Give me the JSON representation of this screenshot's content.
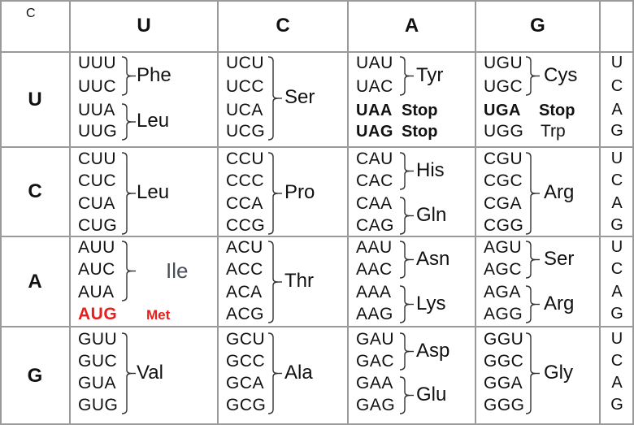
{
  "corner_label": "C",
  "column_headers": [
    "U",
    "C",
    "A",
    "G"
  ],
  "row_headers": [
    "U",
    "C",
    "A",
    "G"
  ],
  "third_position": [
    "U",
    "C",
    "A",
    "G"
  ],
  "blocks": [
    [
      {
        "codons": [
          "UUU",
          "UUC",
          "UUA",
          "UUG"
        ],
        "groups": [
          {
            "label": "Phe",
            "from": 0,
            "to": 1
          },
          {
            "label": "Leu",
            "from": 2,
            "to": 3
          }
        ]
      },
      {
        "codons": [
          "UCU",
          "UCC",
          "UCA",
          "UCG"
        ],
        "groups": [
          {
            "label": "Ser",
            "from": 0,
            "to": 3
          }
        ]
      },
      {
        "codons": [
          "UAU",
          "UAC",
          "UAA",
          "UAG"
        ],
        "groups": [
          {
            "label": "Tyr",
            "from": 0,
            "to": 1
          }
        ],
        "stops": [
          {
            "index": 2,
            "label": "Stop"
          },
          {
            "index": 3,
            "label": "Stop"
          }
        ]
      },
      {
        "codons": [
          "UGU",
          "UGC",
          "UGA",
          "UGG"
        ],
        "groups": [
          {
            "label": "Cys",
            "from": 0,
            "to": 1
          }
        ],
        "stops": [
          {
            "index": 2,
            "label": "Stop"
          }
        ],
        "singles": [
          {
            "index": 3,
            "label": "Trp"
          }
        ]
      }
    ],
    [
      {
        "codons": [
          "CUU",
          "CUC",
          "CUA",
          "CUG"
        ],
        "groups": [
          {
            "label": "Leu",
            "from": 0,
            "to": 3
          }
        ]
      },
      {
        "codons": [
          "CCU",
          "CCC",
          "CCA",
          "CCG"
        ],
        "groups": [
          {
            "label": "Pro",
            "from": 0,
            "to": 3
          }
        ]
      },
      {
        "codons": [
          "CAU",
          "CAC",
          "CAA",
          "CAG"
        ],
        "groups": [
          {
            "label": "His",
            "from": 0,
            "to": 1
          },
          {
            "label": "Gln",
            "from": 2,
            "to": 3
          }
        ]
      },
      {
        "codons": [
          "CGU",
          "CGC",
          "CGA",
          "CGG"
        ],
        "groups": [
          {
            "label": "Arg",
            "from": 0,
            "to": 3
          }
        ]
      }
    ],
    [
      {
        "codons": [
          "AUU",
          "AUC",
          "AUA",
          "AUG"
        ],
        "groups": [
          {
            "label": "Ile",
            "from": 0,
            "to": 2
          }
        ],
        "start": {
          "index": 3,
          "label": "Met"
        }
      },
      {
        "codons": [
          "ACU",
          "ACC",
          "ACA",
          "ACG"
        ],
        "groups": [
          {
            "label": "Thr",
            "from": 0,
            "to": 3
          }
        ]
      },
      {
        "codons": [
          "AAU",
          "AAC",
          "AAA",
          "AAG"
        ],
        "groups": [
          {
            "label": "Asn",
            "from": 0,
            "to": 1
          },
          {
            "label": "Lys",
            "from": 2,
            "to": 3
          }
        ]
      },
      {
        "codons": [
          "AGU",
          "AGC",
          "AGA",
          "AGG"
        ],
        "groups": [
          {
            "label": "Ser",
            "from": 0,
            "to": 1
          },
          {
            "label": "Arg",
            "from": 2,
            "to": 3
          }
        ]
      }
    ],
    [
      {
        "codons": [
          "GUU",
          "GUC",
          "GUA",
          "GUG"
        ],
        "groups": [
          {
            "label": "Val",
            "from": 0,
            "to": 3
          }
        ]
      },
      {
        "codons": [
          "GCU",
          "GCC",
          "GCA",
          "GCG"
        ],
        "groups": [
          {
            "label": "Ala",
            "from": 0,
            "to": 3
          }
        ]
      },
      {
        "codons": [
          "GAU",
          "GAC",
          "GAA",
          "GAG"
        ],
        "groups": [
          {
            "label": "Asp",
            "from": 0,
            "to": 1
          },
          {
            "label": "Glu",
            "from": 2,
            "to": 3
          }
        ]
      },
      {
        "codons": [
          "GGU",
          "GGC",
          "GGA",
          "GGG"
        ],
        "groups": [
          {
            "label": "Gly",
            "from": 0,
            "to": 3
          }
        ]
      }
    ]
  ],
  "colors": {
    "start": "#e8201c",
    "ile": "#4a4f57",
    "grid": "#9a9a9a",
    "text": "#111111"
  }
}
